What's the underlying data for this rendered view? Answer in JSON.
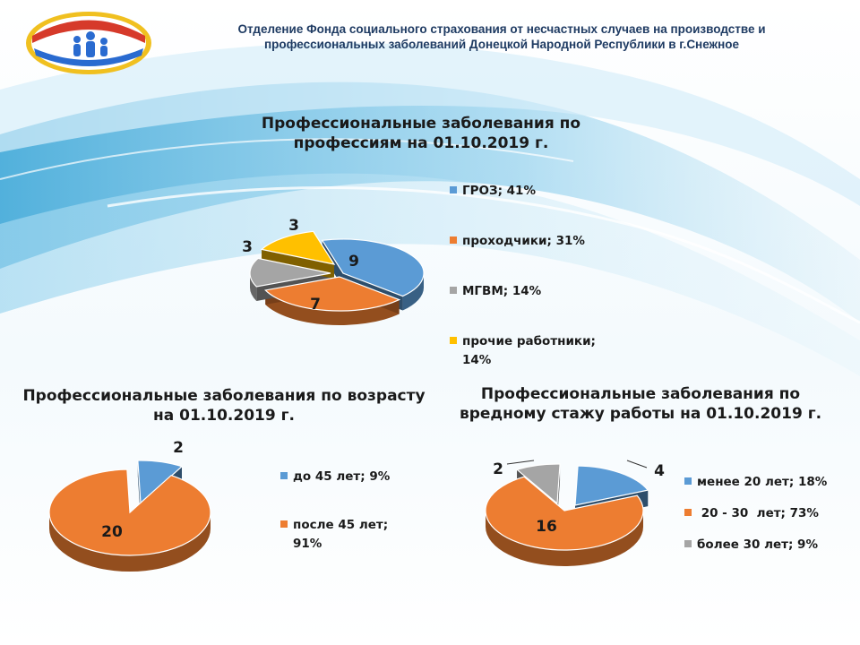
{
  "header": {
    "line1": "Отделение Фонда социального страхования от несчастных случаев на производстве  и",
    "line2": "профессиональных заболеваний Донецкой Народной Республики в г.Снежное"
  },
  "colors": {
    "blue": "#5b9bd5",
    "orange": "#ed7d31",
    "gray": "#a5a5a5",
    "yellow": "#ffc000"
  },
  "chart_data": [
    {
      "type": "pie",
      "title_lines": [
        "Профессиональные  заболевания по",
        "профессиям  на 01.10.2019  г."
      ],
      "slices": [
        {
          "label": "9",
          "value": 9,
          "legend": "ГРОЗ; 41%",
          "color": "#5b9bd5"
        },
        {
          "label": "7",
          "value": 7,
          "legend": "проходчики; 31%",
          "color": "#ed7d31"
        },
        {
          "label": "3",
          "value": 3,
          "legend": "МГВМ; 14%",
          "color": "#a5a5a5"
        },
        {
          "label": "3",
          "value": 3,
          "legend_lines": [
            "прочие работники;",
            "14%"
          ],
          "color": "#ffc000"
        }
      ],
      "legend_placement": "right"
    },
    {
      "type": "pie",
      "title_lines": [
        "Профессиональные  заболевания по возрасту",
        "на 01.10.2019  г."
      ],
      "slices": [
        {
          "label": "2",
          "value": 2,
          "legend": "до 45 лет; 9%",
          "color": "#5b9bd5"
        },
        {
          "label": "20",
          "value": 20,
          "legend_lines": [
            "после 45 лет;",
            "91%"
          ],
          "color": "#ed7d31"
        }
      ],
      "legend_placement": "right"
    },
    {
      "type": "pie",
      "title_lines": [
        "Профессиональные  заболевания по",
        "вредному стажу работы  на 01.10.2019  г."
      ],
      "slices": [
        {
          "label": "4",
          "value": 4,
          "legend": "менее 20 лет; 18%",
          "color": "#5b9bd5"
        },
        {
          "label": "16",
          "value": 16,
          "legend": " 20 - 30  лет; 73%",
          "color": "#ed7d31"
        },
        {
          "label": "2",
          "value": 2,
          "legend": "более 30 лет; 9%",
          "color": "#a5a5a5"
        }
      ],
      "legend_placement": "right"
    }
  ]
}
